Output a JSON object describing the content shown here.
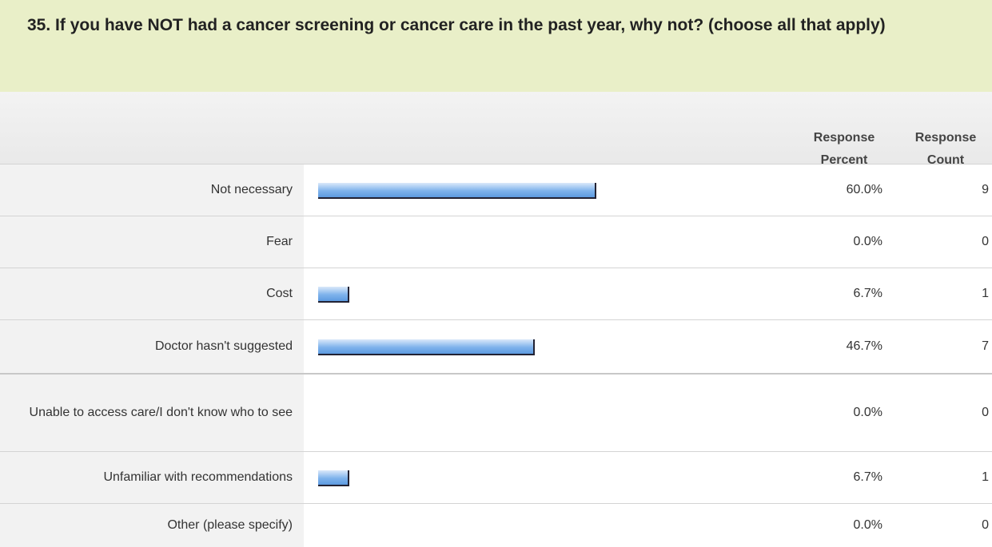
{
  "chart_data": {
    "type": "bar",
    "orientation": "horizontal",
    "title": "35. If you have NOT had a cancer screening or cancer care in the past year, why not? (choose all that apply)",
    "percent_header": "Response Percent",
    "count_header": "Response Count",
    "categories": [
      "Not necessary",
      "Fear",
      "Cost",
      "Doctor hasn't suggested",
      "Unable to access care/I don't know who to see",
      "Unfamiliar with recommendations",
      "Other (please specify)"
    ],
    "values": [
      60.0,
      0.0,
      6.7,
      46.7,
      0.0,
      6.7,
      0.0
    ],
    "value_labels": [
      "60.0%",
      "0.0%",
      "6.7%",
      "46.7%",
      "0.0%",
      "6.7%",
      "0.0%"
    ],
    "counts": [
      9,
      0,
      1,
      7,
      0,
      1,
      0
    ],
    "xlim": [
      0,
      100
    ],
    "color": "#7fb3ec"
  }
}
